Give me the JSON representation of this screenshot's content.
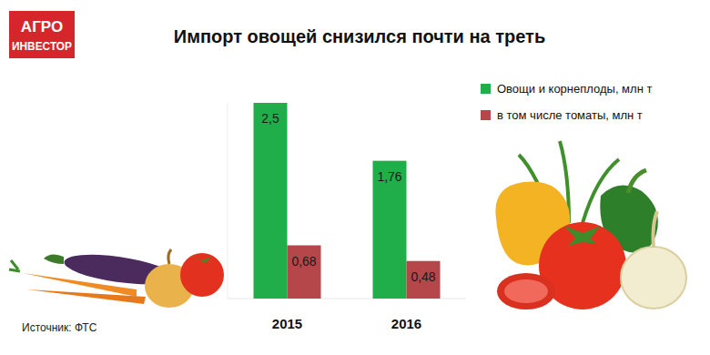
{
  "logo": [
    "АГРО",
    "ИНВЕСТОР"
  ],
  "source": "Источник: ФТС",
  "chart_data": {
    "type": "bar",
    "title": "Импорт овощей снизился почти на треть",
    "categories": [
      "2015",
      "2016"
    ],
    "series": [
      {
        "name": "Овощи и корнеплоды, млн т",
        "color": "#1fae4a",
        "values": [
          2.5,
          1.76
        ],
        "value_labels": [
          "2,5",
          "1,76"
        ]
      },
      {
        "name": "в том числе томаты, млн т",
        "color": "#b5464a",
        "values": [
          0.68,
          0.48
        ],
        "value_labels": [
          "0,68",
          "0,48"
        ]
      }
    ],
    "ylim": [
      0,
      2.5
    ],
    "data_labels": true,
    "tick_labels": "x",
    "legend": "top-right",
    "grid": false
  }
}
